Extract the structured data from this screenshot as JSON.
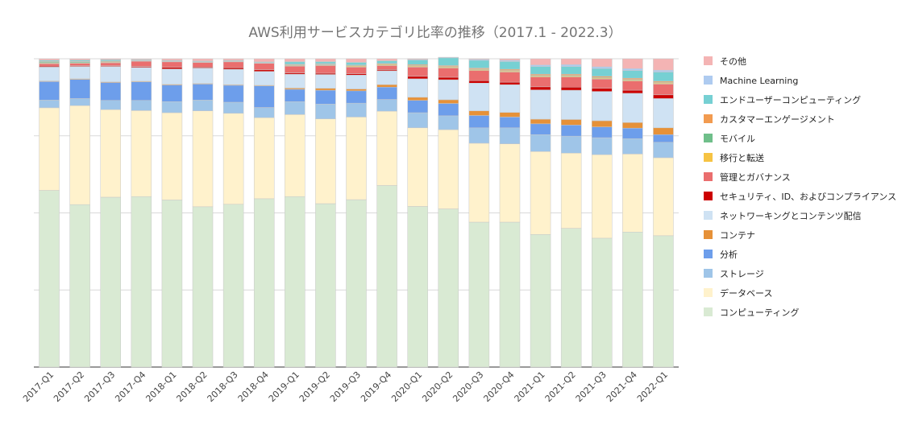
{
  "chart_data": {
    "type": "bar",
    "stacked": true,
    "normalized": true,
    "title": "AWS利用サービスカテゴリ比率の推移（2017.1 - 2022.3）",
    "xlabel": "",
    "ylabel": "",
    "ylim": [
      0,
      1
    ],
    "grid": true,
    "legend_position": "right",
    "categories": [
      "2017-Q1",
      "2017-Q2",
      "2017-Q3",
      "2017-Q4",
      "2018-Q1",
      "2018-Q2",
      "2018-Q3",
      "2018-Q4",
      "2019-Q1",
      "2019-Q2",
      "2019-Q3",
      "2019-Q4",
      "2020-Q1",
      "2020-Q2",
      "2020-Q3",
      "2020-Q4",
      "2021-Q1",
      "2021-Q2",
      "2021-Q3",
      "2021-Q4",
      "2022-Q1"
    ],
    "series": [
      {
        "name": "コンピューティング",
        "color": "#d9ead3",
        "values": [
          0.573,
          0.527,
          0.551,
          0.553,
          0.542,
          0.52,
          0.528,
          0.546,
          0.553,
          0.53,
          0.543,
          0.589,
          0.521,
          0.513,
          0.47,
          0.47,
          0.43,
          0.45,
          0.418,
          0.438,
          0.426
        ]
      },
      {
        "name": "データベース",
        "color": "#fff2cc",
        "values": [
          0.268,
          0.321,
          0.284,
          0.279,
          0.283,
          0.311,
          0.295,
          0.263,
          0.266,
          0.275,
          0.268,
          0.241,
          0.255,
          0.257,
          0.256,
          0.254,
          0.269,
          0.244,
          0.271,
          0.253,
          0.253
        ]
      },
      {
        "name": "ストレージ",
        "color": "#9fc5e8",
        "values": [
          0.025,
          0.023,
          0.03,
          0.033,
          0.036,
          0.035,
          0.036,
          0.033,
          0.042,
          0.048,
          0.045,
          0.038,
          0.049,
          0.045,
          0.05,
          0.052,
          0.055,
          0.055,
          0.055,
          0.05,
          0.05
        ]
      },
      {
        "name": "分析",
        "color": "#6d9eeb",
        "values": [
          0.06,
          0.062,
          0.058,
          0.06,
          0.054,
          0.052,
          0.055,
          0.07,
          0.04,
          0.045,
          0.04,
          0.04,
          0.04,
          0.04,
          0.04,
          0.035,
          0.035,
          0.036,
          0.035,
          0.034,
          0.025
        ]
      },
      {
        "name": "コンテナ",
        "color": "#e69138",
        "values": [
          0.002,
          0.002,
          0.002,
          0.002,
          0.002,
          0.002,
          0.002,
          0.002,
          0.004,
          0.006,
          0.006,
          0.008,
          0.01,
          0.012,
          0.015,
          0.015,
          0.015,
          0.018,
          0.02,
          0.018,
          0.022
        ]
      },
      {
        "name": "ネットワーキングとコンテンツ配信",
        "color": "#cfe2f3",
        "values": [
          0.045,
          0.04,
          0.05,
          0.045,
          0.05,
          0.05,
          0.05,
          0.045,
          0.045,
          0.045,
          0.045,
          0.045,
          0.06,
          0.065,
          0.09,
          0.09,
          0.095,
          0.095,
          0.095,
          0.095,
          0.095
        ]
      },
      {
        "name": "セキュリティ、ID、およびコンプライアンス",
        "color": "#cc0000",
        "values": [
          0.003,
          0.002,
          0.002,
          0.003,
          0.005,
          0.003,
          0.005,
          0.005,
          0.004,
          0.004,
          0.004,
          0.004,
          0.008,
          0.008,
          0.008,
          0.008,
          0.01,
          0.01,
          0.01,
          0.01,
          0.012
        ]
      },
      {
        "name": "管理とガバナンス",
        "color": "#ea6e6e",
        "values": [
          0.008,
          0.008,
          0.01,
          0.017,
          0.018,
          0.015,
          0.019,
          0.021,
          0.022,
          0.025,
          0.022,
          0.013,
          0.03,
          0.03,
          0.033,
          0.033,
          0.032,
          0.033,
          0.03,
          0.03,
          0.035
        ]
      },
      {
        "name": "移行と転送",
        "color": "#f6c343",
        "values": [
          0.002,
          0.002,
          0.002,
          0.001,
          0.001,
          0.001,
          0.001,
          0.001,
          0.002,
          0.002,
          0.003,
          0.003,
          0.003,
          0.003,
          0.003,
          0.003,
          0.003,
          0.003,
          0.003,
          0.003,
          0.003
        ]
      },
      {
        "name": "モバイル",
        "color": "#6fbf8a",
        "values": [
          0.003,
          0.003,
          0.002,
          0.001,
          0.001,
          0.001,
          0.001,
          0.001,
          0.002,
          0.002,
          0.002,
          0.002,
          0.002,
          0.002,
          0.002,
          0.002,
          0.002,
          0.002,
          0.002,
          0.002,
          0.002
        ]
      },
      {
        "name": "カスタマーエンゲージメント",
        "color": "#f29b50",
        "values": [
          0.002,
          0.002,
          0.002,
          0.001,
          0.001,
          0.001,
          0.001,
          0.001,
          0.002,
          0.002,
          0.002,
          0.002,
          0.003,
          0.003,
          0.003,
          0.004,
          0.004,
          0.004,
          0.004,
          0.004,
          0.004
        ]
      },
      {
        "name": "エンドユーザーコンピューティング",
        "color": "#76d0d3",
        "values": [
          0.004,
          0.004,
          0.004,
          0.002,
          0.002,
          0.002,
          0.002,
          0.002,
          0.008,
          0.006,
          0.008,
          0.008,
          0.015,
          0.025,
          0.025,
          0.025,
          0.025,
          0.025,
          0.025,
          0.025,
          0.03
        ]
      },
      {
        "name": "Machine Learning",
        "color": "#aecbf0",
        "values": [
          0.0,
          0.0,
          0.0,
          0.0,
          0.0,
          0.0,
          0.0,
          0.0,
          0.001,
          0.001,
          0.001,
          0.001,
          0.002,
          0.002,
          0.003,
          0.004,
          0.005,
          0.006,
          0.006,
          0.006,
          0.006
        ]
      },
      {
        "name": "その他",
        "color": "#f4b4b4",
        "values": [
          0.005,
          0.004,
          0.003,
          0.002,
          0.005,
          0.007,
          0.005,
          0.01,
          0.009,
          0.009,
          0.011,
          0.006,
          0.002,
          0.0,
          0.002,
          0.005,
          0.02,
          0.019,
          0.026,
          0.032,
          0.037
        ]
      }
    ]
  }
}
